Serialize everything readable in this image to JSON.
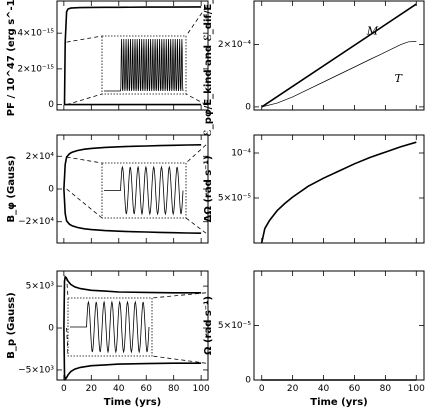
{
  "chart_data": [
    {
      "id": "pf",
      "type": "line",
      "xlabel": "",
      "ylabel": "PF / 10^47 (erg s^-1)",
      "xlim": [
        -5,
        105
      ],
      "ylim": [
        -3e-16,
        5.8e-15
      ],
      "xticks": [
        0,
        20,
        40,
        60,
        80,
        100
      ],
      "yticks": [
        {
          "value": 0,
          "label": "0"
        },
        {
          "value": 2e-15,
          "label": "2×10⁻¹⁵"
        },
        {
          "value": 4e-15,
          "label": "4×10⁻¹⁵"
        }
      ],
      "series": [
        {
          "role": "upper_envelope",
          "x": [
            0.5,
            1,
            2,
            3,
            5,
            8,
            12,
            20,
            30,
            40,
            60,
            80,
            100
          ],
          "y": [
            0,
            3.5e-15,
            5.2e-15,
            5.35e-15,
            5.4e-15,
            5.42e-15,
            5.43e-15,
            5.44e-15,
            5.45e-15,
            5.45e-15,
            5.46e-15,
            5.46e-15,
            5.47e-15
          ]
        },
        {
          "role": "lower_envelope",
          "x": [
            0,
            100
          ],
          "y": [
            0,
            0
          ]
        }
      ],
      "inset": {
        "kind": "spikes",
        "n_cycles": 14,
        "description": "zoom of oscillating flux"
      }
    },
    {
      "id": "bphi",
      "type": "line",
      "xlabel": "",
      "ylabel": "B_φ (Gauss)",
      "xlim": [
        -5,
        105
      ],
      "ylim": [
        -33000,
        33000
      ],
      "xticks": [
        0,
        20,
        40,
        60,
        80,
        100
      ],
      "yticks": [
        {
          "value": -20000,
          "label": "−2×10⁴"
        },
        {
          "value": 0,
          "label": "0"
        },
        {
          "value": 20000,
          "label": "2×10⁴"
        }
      ],
      "series": [
        {
          "role": "upper_envelope",
          "x": [
            0,
            1,
            2,
            4,
            6,
            10,
            15,
            20,
            30,
            40,
            50,
            60,
            70,
            80,
            90,
            100
          ],
          "y": [
            0,
            15000,
            19500,
            21500,
            22500,
            23500,
            24300,
            24800,
            25400,
            25800,
            26100,
            26300,
            26500,
            26700,
            26900,
            27000
          ]
        },
        {
          "role": "lower_envelope",
          "x": [
            0,
            1,
            2,
            4,
            6,
            10,
            15,
            20,
            30,
            40,
            50,
            60,
            70,
            80,
            90,
            100
          ],
          "y": [
            0,
            -15000,
            -19500,
            -21500,
            -22500,
            -23500,
            -24300,
            -24800,
            -25400,
            -25800,
            -26100,
            -26300,
            -26500,
            -26700,
            -26900,
            -27000
          ]
        }
      ],
      "inset": {
        "kind": "sine",
        "n_cycles": 8,
        "description": "zoom of oscillating field"
      }
    },
    {
      "id": "bp",
      "type": "line",
      "xlabel": "Time (yrs)",
      "ylabel": "B_p (Gauss)",
      "xlim": [
        -5,
        105
      ],
      "ylim": [
        -6200,
        6800
      ],
      "xticks": [
        0,
        20,
        40,
        60,
        80,
        100
      ],
      "yticks": [
        {
          "value": -5000,
          "label": "−5×10³"
        },
        {
          "value": 0,
          "label": "0"
        },
        {
          "value": 5000,
          "label": "5×10³"
        }
      ],
      "series": [
        {
          "role": "upper_envelope",
          "x": [
            0,
            0.5,
            1,
            2,
            3,
            5,
            8,
            12,
            20,
            30,
            40,
            60,
            80,
            100
          ],
          "y": [
            0,
            5600,
            6100,
            5900,
            5600,
            5200,
            4900,
            4700,
            4500,
            4400,
            4300,
            4250,
            4200,
            4200
          ]
        },
        {
          "role": "lower_envelope",
          "x": [
            0,
            0.5,
            1,
            2,
            3,
            5,
            8,
            12,
            20,
            30,
            40,
            60,
            80,
            100
          ],
          "y": [
            0,
            -5600,
            -6100,
            -5900,
            -5600,
            -5200,
            -4900,
            -4700,
            -4500,
            -4400,
            -4300,
            -4250,
            -4200,
            -4200
          ]
        }
      ],
      "inset": {
        "kind": "sine",
        "n_cycles": 8,
        "description": "zoom of oscillating field"
      }
    },
    {
      "id": "energy",
      "type": "line",
      "xlabel": "",
      "ylabel": "ℰ_pφ/E_kind and ℰ_dif/E_kind",
      "xlim": [
        -5,
        105
      ],
      "ylim": [
        -1e-05,
        0.00034
      ],
      "xticks": [
        0,
        20,
        40,
        60,
        80,
        100
      ],
      "yticks": [
        {
          "value": 0,
          "label": "0"
        },
        {
          "value": 0.0002,
          "label": "2×10⁻⁴"
        }
      ],
      "series": [
        {
          "name": "M",
          "x": [
            0,
            100
          ],
          "y": [
            0,
            0.00033
          ]
        },
        {
          "name": "T",
          "x": [
            0,
            10,
            20,
            30,
            40,
            50,
            60,
            70,
            80,
            90,
            95,
            100
          ],
          "y": [
            0,
            1.2e-05,
            3.2e-05,
            5.6e-05,
            8e-05,
            0.000104,
            0.000128,
            0.000152,
            0.000176,
            0.0002,
            0.000209,
            0.00021
          ]
        }
      ],
      "annotations": [
        {
          "text": "M",
          "x": 68,
          "y": 0.000232
        },
        {
          "text": "T",
          "x": 86,
          "y": 8e-05
        }
      ]
    },
    {
      "id": "domega",
      "type": "line",
      "xlabel": "",
      "ylabel": "ΔΩ (rad s⁻¹)",
      "xlim": [
        -5,
        105
      ],
      "ylim": [
        0,
        0.00012
      ],
      "xticks": [
        0,
        20,
        40,
        60,
        80,
        100
      ],
      "yticks": [
        {
          "value": 5e-05,
          "label": "5×10⁻⁵"
        },
        {
          "value": 0.0001,
          "label": "10⁻⁴"
        }
      ],
      "series": [
        {
          "name": "",
          "x": [
            0,
            2,
            5,
            10,
            15,
            20,
            30,
            40,
            50,
            60,
            70,
            80,
            90,
            100
          ],
          "y": [
            0,
            1.6e-05,
            2.5e-05,
            3.6e-05,
            4.4e-05,
            5.1e-05,
            6.3e-05,
            7.2e-05,
            8e-05,
            8.8e-05,
            9.5e-05,
            0.000101,
            0.000107,
            0.000112
          ]
        }
      ]
    },
    {
      "id": "omega",
      "type": "line",
      "xlabel": "Time (yrs)",
      "ylabel": "Ω (rad s⁻¹)",
      "xlim": [
        -5,
        105
      ],
      "ylim": [
        0,
        0.0001
      ],
      "xticks": [
        0,
        20,
        40,
        60,
        80,
        100
      ],
      "yticks": [
        {
          "value": 0,
          "label": "0"
        },
        {
          "value": 5e-05,
          "label": "5×10⁻⁵"
        }
      ],
      "series": [
        {
          "name": "",
          "x": [
            0,
            100
          ],
          "y": [
            0,
            0
          ]
        }
      ]
    }
  ]
}
